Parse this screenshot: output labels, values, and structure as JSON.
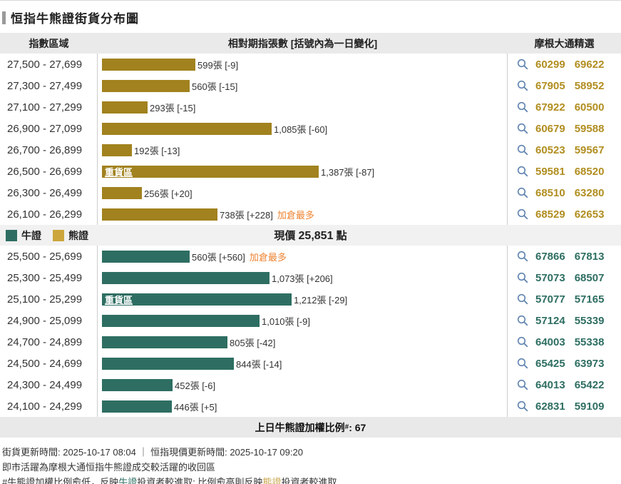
{
  "title": "恒指牛熊證街貨分布圖",
  "table": {
    "headers": [
      "指數區域",
      "相對期指張數 [括號內為一日變化]",
      "摩根大通精選"
    ],
    "icon": {
      "name": "search-icon",
      "shape": "magnifier",
      "color": "#5E83B0"
    }
  },
  "chart_data": {
    "type": "bar",
    "title": "恒指牛熊證街貨分布圖",
    "xlabel": "相對期指張數 [括號內為一日變化]",
    "ylabel": "指數區域",
    "max_value": 1387,
    "note_color": "#EE8432",
    "bear": {
      "name": "熊證",
      "color": "#A1821F",
      "code_color": "#B18E20",
      "rows": [
        {
          "range": "27,500 - 27,699",
          "value": 599,
          "label": "599張 [-9]",
          "codes": [
            "60299",
            "69622"
          ]
        },
        {
          "range": "27,300 - 27,499",
          "value": 560,
          "label": "560張 [-15]",
          "codes": [
            "67905",
            "58952"
          ]
        },
        {
          "range": "27,100 - 27,299",
          "value": 293,
          "label": "293張 [-15]",
          "codes": [
            "67922",
            "60500"
          ]
        },
        {
          "range": "26,900 - 27,099",
          "value": 1085,
          "label": "1,085張 [-60]",
          "codes": [
            "60679",
            "59588"
          ]
        },
        {
          "range": "26,700 - 26,899",
          "value": 192,
          "label": "192張 [-13]",
          "codes": [
            "60523",
            "59567"
          ]
        },
        {
          "range": "26,500 - 26,699",
          "value": 1387,
          "label": "1,387張 [-87]",
          "heavy": "重貨區",
          "codes": [
            "59581",
            "68520"
          ]
        },
        {
          "range": "26,300 - 26,499",
          "value": 256,
          "label": "256張 [+20]",
          "codes": [
            "68510",
            "63280"
          ]
        },
        {
          "range": "26,100 - 26,299",
          "value": 738,
          "label": "738張 [+228]",
          "note": "加倉最多",
          "codes": [
            "68529",
            "62653"
          ]
        }
      ]
    },
    "bull": {
      "name": "牛證",
      "color": "#2E6E62",
      "code_color": "#2E6E62",
      "rows": [
        {
          "range": "25,500 - 25,699",
          "value": 560,
          "label": "560張 [+560]",
          "note": "加倉最多",
          "codes": [
            "67866",
            "67813"
          ]
        },
        {
          "range": "25,300 - 25,499",
          "value": 1073,
          "label": "1,073張 [+206]",
          "codes": [
            "57073",
            "68507"
          ]
        },
        {
          "range": "25,100 - 25,299",
          "value": 1212,
          "label": "1,212張 [-29]",
          "heavy": "重貨區",
          "codes": [
            "57077",
            "57165"
          ]
        },
        {
          "range": "24,900 - 25,099",
          "value": 1010,
          "label": "1,010張 [-9]",
          "codes": [
            "57124",
            "55339"
          ]
        },
        {
          "range": "24,700 - 24,899",
          "value": 805,
          "label": "805張 [-42]",
          "codes": [
            "64003",
            "55338"
          ]
        },
        {
          "range": "24,500 - 24,699",
          "value": 844,
          "label": "844張 [-14]",
          "codes": [
            "65425",
            "63973"
          ]
        },
        {
          "range": "24,300 - 24,499",
          "value": 452,
          "label": "452張 [-6]",
          "codes": [
            "64013",
            "65422"
          ]
        },
        {
          "range": "24,100 - 24,299",
          "value": 446,
          "label": "446張 [+5]",
          "codes": [
            "62831",
            "59109"
          ]
        }
      ]
    }
  },
  "legend": {
    "bull_label": "牛證",
    "bull_color": "#2E6E62",
    "bear_label": "熊證",
    "bear_color": "#CCA63C"
  },
  "price": {
    "label": "現價",
    "value": "25,851",
    "unit": "點"
  },
  "summary": {
    "prefix": "上日牛熊證加權比例",
    "sup": "#",
    "suffix": ": 67"
  },
  "footer": {
    "line1": "街貨更新時間: 2025-10-17 08:04 ｜ 恒指現價更新時間: 2025-10-17 09:20",
    "line2": "即市活躍為摩根大通恒指牛熊證成交較活躍的收回區",
    "line3_parts": {
      "p1": "#牛熊證加權比例愈低，反映",
      "bull": "牛證",
      "p2": "投資者較進取; 比例愈高則反映",
      "bear": "熊證",
      "p3": "投資者較進取"
    },
    "bull_color": "#2E6E62",
    "bear_color": "#C9A54B"
  }
}
